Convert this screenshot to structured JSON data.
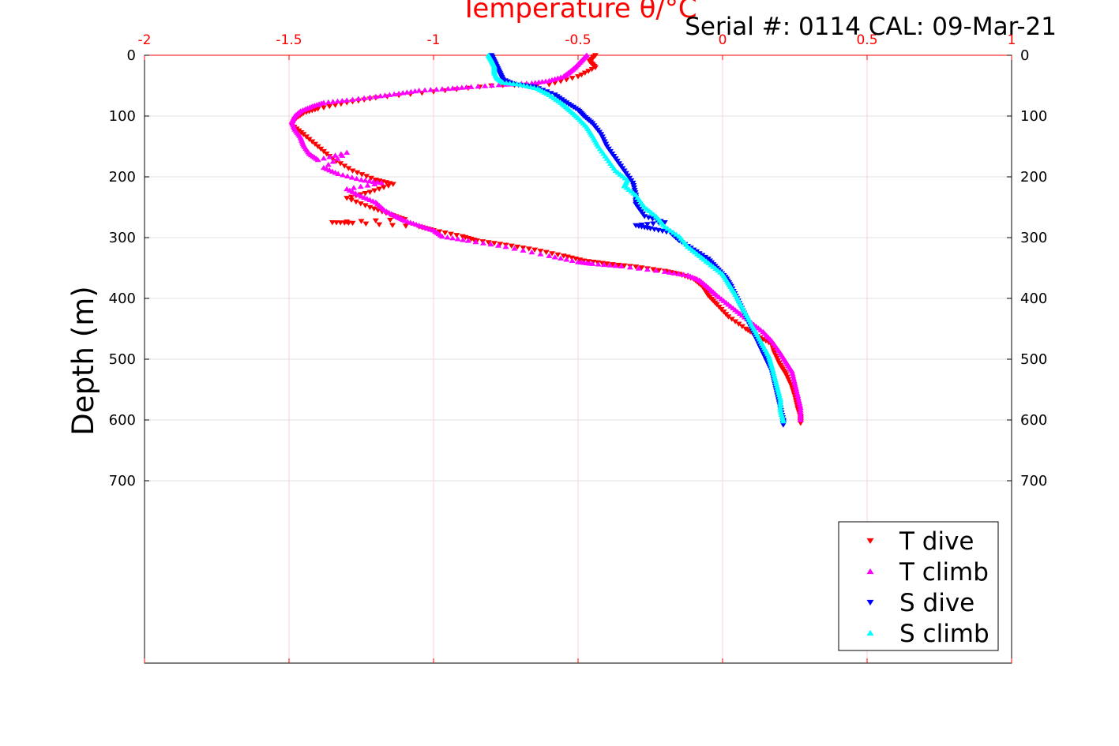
{
  "header": {
    "serial_label": "Serial #: 0114  CAL: 09-Mar-21"
  },
  "colors": {
    "axis_top": "#ff0000",
    "axis_frame": "#000000",
    "grid": "#e0e0e0",
    "grid_x": "#ffd0d8",
    "background": "#ffffff"
  },
  "chart_data": {
    "type": "scatter",
    "title": "Temperature θ/°C",
    "xlabel": "Temperature θ/°C",
    "ylabel": "Depth (m)",
    "xlim": [
      -2,
      1
    ],
    "ylim": [
      0,
      1000
    ],
    "y_reversed": true,
    "xticks": [
      "-2",
      "-1.5",
      "-1",
      "-0.5",
      "0",
      "0.5",
      "1"
    ],
    "xtick_values": [
      -2,
      -1.5,
      -1,
      -0.5,
      0,
      0.5,
      1
    ],
    "yticks": [
      "0",
      "100",
      "200",
      "300",
      "400",
      "500",
      "600",
      "700"
    ],
    "ytick_values": [
      0,
      100,
      200,
      300,
      400,
      500,
      600,
      700
    ],
    "grid": true,
    "legend_position": "bottom-right",
    "series": [
      {
        "name": "T dive",
        "color": "#ff0000",
        "marker": "triangle-down",
        "points": [
          [
            -0.44,
            0
          ],
          [
            -0.46,
            10
          ],
          [
            -0.44,
            20
          ],
          [
            -0.5,
            35
          ],
          [
            -0.6,
            48
          ],
          [
            -0.8,
            50
          ],
          [
            -1.0,
            60
          ],
          [
            -1.2,
            70
          ],
          [
            -1.3,
            78
          ],
          [
            -1.4,
            88
          ],
          [
            -1.45,
            95
          ],
          [
            -1.48,
            105
          ],
          [
            -1.49,
            115
          ],
          [
            -1.45,
            130
          ],
          [
            -1.4,
            150
          ],
          [
            -1.35,
            170
          ],
          [
            -1.28,
            190
          ],
          [
            -1.2,
            205
          ],
          [
            -1.14,
            212
          ],
          [
            -1.22,
            225
          ],
          [
            -1.3,
            235
          ],
          [
            -1.22,
            250
          ],
          [
            -1.15,
            262
          ],
          [
            -1.1,
            270
          ],
          [
            -1.35,
            275
          ],
          [
            -1.28,
            276
          ],
          [
            -1.05,
            282
          ],
          [
            -1.0,
            288
          ],
          [
            -0.9,
            298
          ],
          [
            -0.85,
            305
          ],
          [
            -0.75,
            312
          ],
          [
            -0.65,
            320
          ],
          [
            -0.55,
            330
          ],
          [
            -0.48,
            338
          ],
          [
            -0.4,
            343
          ],
          [
            -0.3,
            348
          ],
          [
            -0.2,
            355
          ],
          [
            -0.15,
            360
          ],
          [
            -0.1,
            368
          ],
          [
            -0.07,
            380
          ],
          [
            -0.05,
            395
          ],
          [
            -0.02,
            410
          ],
          [
            0.02,
            430
          ],
          [
            0.08,
            450
          ],
          [
            0.12,
            462
          ],
          [
            0.17,
            475
          ],
          [
            0.18,
            490
          ],
          [
            0.2,
            510
          ],
          [
            0.22,
            525
          ],
          [
            0.24,
            545
          ],
          [
            0.25,
            560
          ],
          [
            0.26,
            580
          ],
          [
            0.27,
            595
          ],
          [
            0.27,
            605
          ]
        ]
      },
      {
        "name": "T climb",
        "color": "#ff00ff",
        "marker": "triangle-up",
        "points": [
          [
            -0.47,
            0
          ],
          [
            -0.49,
            10
          ],
          [
            -0.51,
            20
          ],
          [
            -0.53,
            28
          ],
          [
            -0.55,
            35
          ],
          [
            -0.6,
            42
          ],
          [
            -0.66,
            46
          ],
          [
            -0.75,
            48
          ],
          [
            -0.87,
            52
          ],
          [
            -0.95,
            55
          ],
          [
            -1.05,
            58
          ],
          [
            -1.12,
            63
          ],
          [
            -1.2,
            68
          ],
          [
            -1.3,
            74
          ],
          [
            -1.38,
            78
          ],
          [
            -1.42,
            84
          ],
          [
            -1.46,
            92
          ],
          [
            -1.48,
            100
          ],
          [
            -1.49,
            110
          ],
          [
            -1.48,
            122
          ],
          [
            -1.46,
            135
          ],
          [
            -1.45,
            148
          ],
          [
            -1.43,
            162
          ],
          [
            -1.4,
            172
          ],
          [
            -1.3,
            160
          ],
          [
            -1.38,
            185
          ],
          [
            -1.33,
            195
          ],
          [
            -1.25,
            205
          ],
          [
            -1.18,
            210
          ],
          [
            -1.3,
            220
          ],
          [
            -1.25,
            232
          ],
          [
            -1.2,
            242
          ],
          [
            -1.17,
            255
          ],
          [
            -1.13,
            265
          ],
          [
            -1.1,
            272
          ],
          [
            -1.05,
            280
          ],
          [
            -1.0,
            288
          ],
          [
            -0.97,
            298
          ],
          [
            -0.88,
            305
          ],
          [
            -0.75,
            315
          ],
          [
            -0.6,
            330
          ],
          [
            -0.5,
            340
          ],
          [
            -0.45,
            343
          ],
          [
            -0.35,
            347
          ],
          [
            -0.2,
            356
          ],
          [
            -0.12,
            362
          ],
          [
            -0.08,
            370
          ],
          [
            -0.05,
            382
          ],
          [
            -0.02,
            395
          ],
          [
            0.02,
            410
          ],
          [
            0.06,
            425
          ],
          [
            0.1,
            440
          ],
          [
            0.14,
            455
          ],
          [
            0.17,
            470
          ],
          [
            0.2,
            490
          ],
          [
            0.22,
            505
          ],
          [
            0.24,
            520
          ],
          [
            0.25,
            540
          ],
          [
            0.26,
            560
          ],
          [
            0.27,
            580
          ],
          [
            0.27,
            600
          ]
        ]
      },
      {
        "name": "S dive",
        "color": "#0000ff",
        "marker": "triangle-down",
        "points": [
          [
            -0.8,
            0
          ],
          [
            -0.79,
            10
          ],
          [
            -0.78,
            20
          ],
          [
            -0.77,
            30
          ],
          [
            -0.76,
            40
          ],
          [
            -0.72,
            48
          ],
          [
            -0.65,
            52
          ],
          [
            -0.58,
            65
          ],
          [
            -0.54,
            78
          ],
          [
            -0.5,
            90
          ],
          [
            -0.48,
            100
          ],
          [
            -0.45,
            112
          ],
          [
            -0.42,
            130
          ],
          [
            -0.4,
            150
          ],
          [
            -0.37,
            170
          ],
          [
            -0.34,
            190
          ],
          [
            -0.31,
            210
          ],
          [
            -0.3,
            230
          ],
          [
            -0.3,
            245
          ],
          [
            -0.27,
            265
          ],
          [
            -0.2,
            275
          ],
          [
            -0.3,
            280
          ],
          [
            -0.25,
            285
          ],
          [
            -0.18,
            292
          ],
          [
            -0.15,
            305
          ],
          [
            -0.1,
            320
          ],
          [
            -0.05,
            335
          ],
          [
            -0.02,
            350
          ],
          [
            0.01,
            365
          ],
          [
            0.03,
            380
          ],
          [
            0.05,
            400
          ],
          [
            0.07,
            420
          ],
          [
            0.09,
            440
          ],
          [
            0.11,
            460
          ],
          [
            0.13,
            480
          ],
          [
            0.15,
            500
          ],
          [
            0.17,
            520
          ],
          [
            0.18,
            540
          ],
          [
            0.19,
            560
          ],
          [
            0.2,
            580
          ],
          [
            0.21,
            600
          ],
          [
            0.21,
            608
          ]
        ]
      },
      {
        "name": "S climb",
        "color": "#00ffff",
        "marker": "triangle-up",
        "points": [
          [
            -0.81,
            0
          ],
          [
            -0.8,
            8
          ],
          [
            -0.79,
            18
          ],
          [
            -0.79,
            28
          ],
          [
            -0.78,
            38
          ],
          [
            -0.76,
            45
          ],
          [
            -0.7,
            48
          ],
          [
            -0.64,
            55
          ],
          [
            -0.6,
            65
          ],
          [
            -0.56,
            78
          ],
          [
            -0.53,
            90
          ],
          [
            -0.5,
            103
          ],
          [
            -0.47,
            118
          ],
          [
            -0.45,
            133
          ],
          [
            -0.43,
            150
          ],
          [
            -0.4,
            170
          ],
          [
            -0.37,
            190
          ],
          [
            -0.33,
            205
          ],
          [
            -0.34,
            215
          ],
          [
            -0.3,
            230
          ],
          [
            -0.27,
            250
          ],
          [
            -0.23,
            265
          ],
          [
            -0.2,
            282
          ],
          [
            -0.15,
            298
          ],
          [
            -0.12,
            315
          ],
          [
            -0.08,
            330
          ],
          [
            -0.04,
            345
          ],
          [
            0.0,
            360
          ],
          [
            0.02,
            375
          ],
          [
            0.04,
            390
          ],
          [
            0.06,
            408
          ],
          [
            0.08,
            425
          ],
          [
            0.1,
            443
          ],
          [
            0.12,
            460
          ],
          [
            0.14,
            478
          ],
          [
            0.16,
            495
          ],
          [
            0.17,
            512
          ],
          [
            0.18,
            530
          ],
          [
            0.19,
            548
          ],
          [
            0.2,
            566
          ],
          [
            0.2,
            584
          ],
          [
            0.21,
            602
          ]
        ]
      }
    ]
  }
}
